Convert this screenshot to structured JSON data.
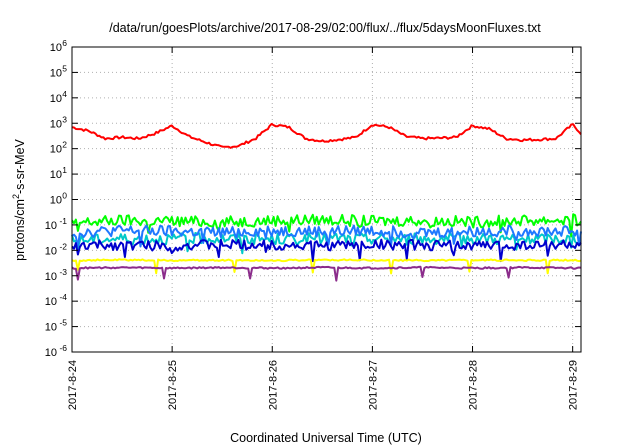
{
  "chart_data": {
    "type": "line",
    "title": "/data/run/goesPlots/archive/2017-08-29/02:00/flux/../flux/5daysMoonFluxes.txt",
    "xlabel": "Coordinated Universal Time (UTC)",
    "ylabel_parts": [
      "protons/cm",
      "2",
      "-s-sr-MeV"
    ],
    "y_scale": "log",
    "ylim": [
      1e-06,
      1000000.0
    ],
    "xlim": [
      "2017-08-24 00:00",
      "2017-08-29 02:00"
    ],
    "grid": true,
    "legend": "none",
    "y_ticks": [
      {
        "value": 1e-06,
        "base": "10",
        "exp": "-6"
      },
      {
        "value": 1e-05,
        "base": "10",
        "exp": "-5"
      },
      {
        "value": 0.0001,
        "base": "10",
        "exp": "-4"
      },
      {
        "value": 0.001,
        "base": "10",
        "exp": "-3"
      },
      {
        "value": 0.01,
        "base": "10",
        "exp": "-2"
      },
      {
        "value": 0.1,
        "base": "10",
        "exp": "-1"
      },
      {
        "value": 1,
        "base": "10",
        "exp": "0"
      },
      {
        "value": 10,
        "base": "10",
        "exp": "1"
      },
      {
        "value": 100,
        "base": "10",
        "exp": "2"
      },
      {
        "value": 1000,
        "base": "10",
        "exp": "3"
      },
      {
        "value": 10000,
        "base": "10",
        "exp": "4"
      },
      {
        "value": 100000,
        "base": "10",
        "exp": "5"
      },
      {
        "value": 1000000,
        "base": "10",
        "exp": "6"
      }
    ],
    "x_ticks": [
      {
        "value": "2017-08-24 00:00",
        "label": "2017-8-24"
      },
      {
        "value": "2017-08-25 00:00",
        "label": "2017-8-25"
      },
      {
        "value": "2017-08-26 00:00",
        "label": "2017-8-26"
      },
      {
        "value": "2017-08-27 00:00",
        "label": "2017-8-27"
      },
      {
        "value": "2017-08-28 00:00",
        "label": "2017-8-28"
      },
      {
        "value": "2017-08-29 00:00",
        "label": "2017-8-29"
      }
    ],
    "series": [
      {
        "color": "#ff0000",
        "x": [
          "2017-08-24 00:00",
          "2017-08-24 04:00",
          "2017-08-24 08:00",
          "2017-08-24 12:00",
          "2017-08-24 16:00",
          "2017-08-24 20:00",
          "2017-08-25 00:00",
          "2017-08-25 04:00",
          "2017-08-25 08:00",
          "2017-08-25 12:00",
          "2017-08-25 16:00",
          "2017-08-25 20:00",
          "2017-08-26 00:00",
          "2017-08-26 04:00",
          "2017-08-26 08:00",
          "2017-08-26 12:00",
          "2017-08-26 16:00",
          "2017-08-26 20:00",
          "2017-08-27 00:00",
          "2017-08-27 04:00",
          "2017-08-27 08:00",
          "2017-08-27 12:00",
          "2017-08-27 16:00",
          "2017-08-27 20:00",
          "2017-08-28 00:00",
          "2017-08-28 04:00",
          "2017-08-28 08:00",
          "2017-08-28 12:00",
          "2017-08-28 16:00",
          "2017-08-28 20:00",
          "2017-08-29 00:00",
          "2017-08-29 02:00"
        ],
        "y": [
          700,
          500,
          250,
          280,
          250,
          400,
          800,
          300,
          180,
          110,
          130,
          250,
          900,
          700,
          250,
          200,
          230,
          280,
          900,
          700,
          300,
          250,
          260,
          280,
          800,
          600,
          250,
          220,
          230,
          250,
          900,
          400
        ]
      },
      {
        "color": "#00ff00",
        "x": [
          "2017-08-24 00:00",
          "2017-08-24 12:00",
          "2017-08-25 00:00",
          "2017-08-25 12:00",
          "2017-08-26 00:00",
          "2017-08-26 12:00",
          "2017-08-27 00:00",
          "2017-08-27 12:00",
          "2017-08-28 00:00",
          "2017-08-28 12:00",
          "2017-08-29 00:00",
          "2017-08-29 02:00"
        ],
        "y": [
          0.12,
          0.15,
          0.14,
          0.13,
          0.15,
          0.16,
          0.14,
          0.15,
          0.13,
          0.15,
          0.16,
          0.14
        ]
      },
      {
        "color": "#00c8c8",
        "x": [
          "2017-08-24 00:00",
          "2017-08-24 12:00",
          "2017-08-25 00:00",
          "2017-08-25 12:00",
          "2017-08-26 00:00",
          "2017-08-26 12:00",
          "2017-08-27 00:00",
          "2017-08-27 12:00",
          "2017-08-28 00:00",
          "2017-08-28 12:00",
          "2017-08-29 00:00",
          "2017-08-29 02:00"
        ],
        "y": [
          0.025,
          0.03,
          0.028,
          0.03,
          0.027,
          0.03,
          0.029,
          0.028,
          0.03,
          0.027,
          0.029,
          0.028
        ]
      },
      {
        "color": "#1e78ff",
        "x": [
          "2017-08-24 00:00",
          "2017-08-24 12:00",
          "2017-08-25 00:00",
          "2017-08-25 12:00",
          "2017-08-26 00:00",
          "2017-08-26 12:00",
          "2017-08-27 00:00",
          "2017-08-27 12:00",
          "2017-08-28 00:00",
          "2017-08-28 12:00",
          "2017-08-29 00:00",
          "2017-08-29 02:00"
        ],
        "y": [
          0.05,
          0.06,
          0.055,
          0.05,
          0.06,
          0.055,
          0.06,
          0.05,
          0.055,
          0.06,
          0.055,
          0.06
        ]
      },
      {
        "color": "#0000cd",
        "x": [
          "2017-08-24 00:00",
          "2017-08-24 12:00",
          "2017-08-25 00:00",
          "2017-08-25 12:00",
          "2017-08-26 00:00",
          "2017-08-26 12:00",
          "2017-08-27 00:00",
          "2017-08-27 12:00",
          "2017-08-28 00:00",
          "2017-08-28 12:00",
          "2017-08-29 00:00",
          "2017-08-29 02:00"
        ],
        "y": [
          0.015,
          0.016,
          0.015,
          0.017,
          0.016,
          0.015,
          0.017,
          0.016,
          0.015,
          0.016,
          0.017,
          0.016
        ]
      },
      {
        "color": "#ffff00",
        "x": [
          "2017-08-24 00:00",
          "2017-08-24 12:00",
          "2017-08-25 00:00",
          "2017-08-25 12:00",
          "2017-08-26 00:00",
          "2017-08-26 12:00",
          "2017-08-27 00:00",
          "2017-08-27 12:00",
          "2017-08-28 00:00",
          "2017-08-28 12:00",
          "2017-08-29 00:00",
          "2017-08-29 02:00"
        ],
        "y": [
          0.004,
          0.0042,
          0.004,
          0.0041,
          0.004,
          0.0042,
          0.0041,
          0.004,
          0.0042,
          0.004,
          0.0041,
          0.004
        ]
      },
      {
        "color": "#8b2c8b",
        "x": [
          "2017-08-24 00:00",
          "2017-08-24 12:00",
          "2017-08-25 00:00",
          "2017-08-25 12:00",
          "2017-08-26 00:00",
          "2017-08-26 12:00",
          "2017-08-27 00:00",
          "2017-08-27 12:00",
          "2017-08-28 00:00",
          "2017-08-28 12:00",
          "2017-08-29 00:00",
          "2017-08-29 02:00"
        ],
        "y": [
          0.002,
          0.0021,
          0.002,
          0.0021,
          0.002,
          0.0021,
          0.002,
          0.0021,
          0.002,
          0.0021,
          0.002,
          0.002
        ]
      }
    ]
  }
}
